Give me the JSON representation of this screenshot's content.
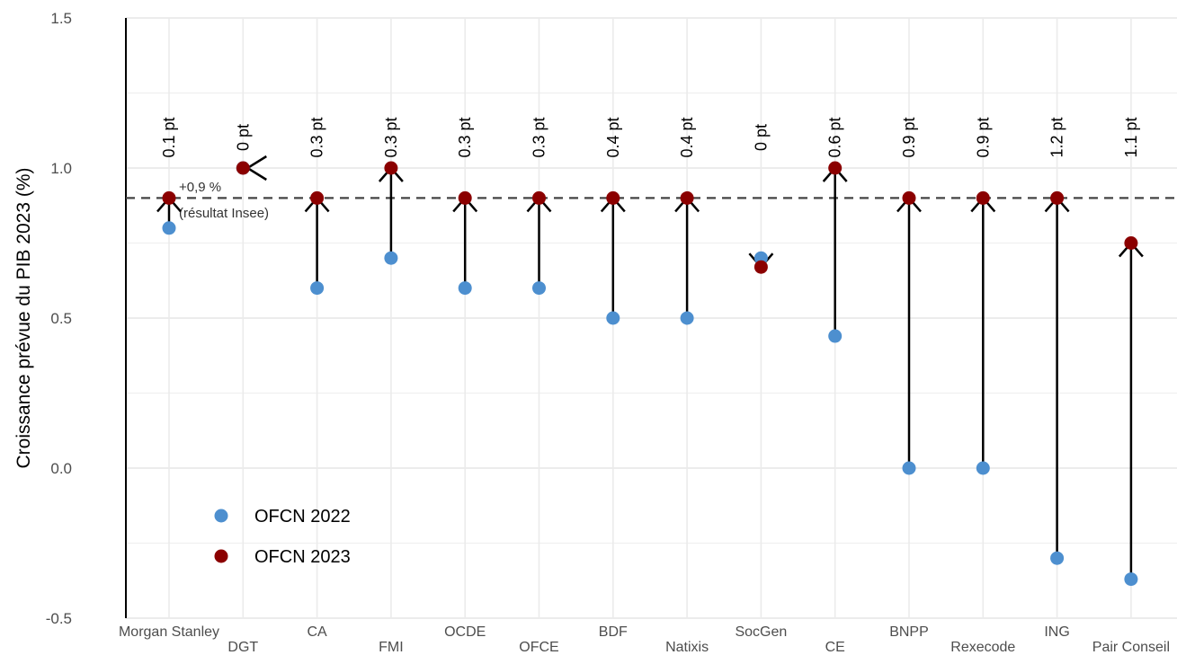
{
  "chart_data": {
    "type": "dumbbell-arrow",
    "xlabel": "",
    "ylabel": "Croissance prévue du PIB 2023 (%)",
    "ylim": [
      -0.5,
      1.5
    ],
    "yticks": [
      1.5,
      1.0,
      0.5,
      0.0,
      -0.5
    ],
    "ytick_labels": [
      "1.5",
      "1.0",
      "0.5",
      "0.0",
      "-0.5"
    ],
    "grid": true,
    "categories": [
      "Morgan Stanley",
      "DGT",
      "CA",
      "FMI",
      "OCDE",
      "OFCE",
      "BDF",
      "Natixis",
      "SocGen",
      "CE",
      "BNPP",
      "Rexecode",
      "ING",
      "Pair Conseil"
    ],
    "series": [
      {
        "name": "OFCN 2022",
        "color": "#4d8fcf",
        "values": [
          0.8,
          1.0,
          0.6,
          0.7,
          0.6,
          0.6,
          0.5,
          0.5,
          0.7,
          0.44,
          0.0,
          0.0,
          -0.3,
          -0.37
        ]
      },
      {
        "name": "OFCN 2023",
        "color": "#8b0000",
        "values": [
          0.9,
          1.0,
          0.9,
          1.0,
          0.9,
          0.9,
          0.9,
          0.9,
          0.67,
          1.0,
          0.9,
          0.9,
          0.9,
          0.75
        ]
      }
    ],
    "delta_labels": [
      "0.1 pt",
      "0 pt",
      "0.3 pt",
      "0.3 pt",
      "0.3 pt",
      "0.3 pt",
      "0.4 pt",
      "0.4 pt",
      "0 pt",
      "0.6 pt",
      "0.9 pt",
      "0.9 pt",
      "1.2 pt",
      "1.1 pt"
    ],
    "reference_line": {
      "value": 0.9,
      "label_line1": "+0,9 %",
      "label_line2": "(résultat Insee)",
      "style": "dashed"
    },
    "legend": {
      "placement": "bottom-left",
      "entries": [
        "OFCN 2022",
        "OFCN 2023"
      ]
    }
  }
}
